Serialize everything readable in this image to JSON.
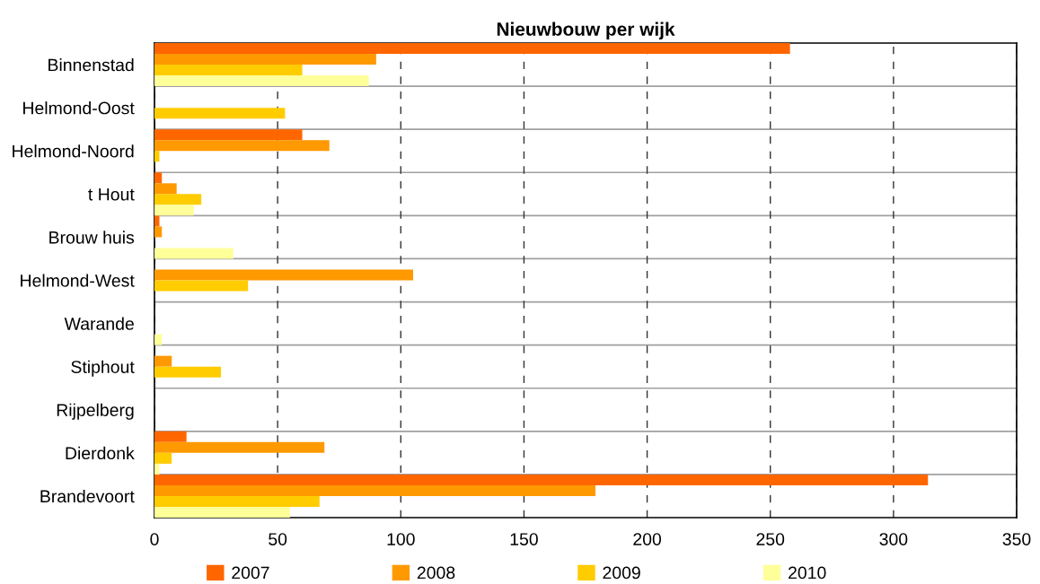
{
  "chart_data": {
    "type": "bar",
    "orientation": "horizontal",
    "title": "Nieuwbouw per wijk",
    "categories": [
      "Binnenstad",
      "Helmond-Oost",
      "Helmond-Noord",
      "t Hout",
      "Brouw huis",
      "Helmond-West",
      "Warande",
      "Stiphout",
      "Rijpelberg",
      "Dierdonk",
      "Brandevoort"
    ],
    "series": [
      {
        "name": "2007",
        "color": "#ff6600",
        "values": [
          258,
          0,
          60,
          3,
          2,
          0,
          0,
          0,
          0,
          13,
          314
        ]
      },
      {
        "name": "2008",
        "color": "#ff9900",
        "values": [
          90,
          0,
          71,
          9,
          3,
          105,
          0,
          7,
          0,
          69,
          179
        ]
      },
      {
        "name": "2009",
        "color": "#ffcc00",
        "values": [
          60,
          53,
          2,
          19,
          0,
          38,
          0,
          27,
          0,
          7,
          67
        ]
      },
      {
        "name": "2010",
        "color": "#ffff99",
        "values": [
          87,
          0,
          0,
          16,
          32,
          0,
          3,
          0,
          0,
          2,
          55
        ]
      }
    ],
    "xlim": [
      0,
      350
    ],
    "xticks": [
      0,
      50,
      100,
      150,
      200,
      250,
      300,
      350
    ],
    "grid": true,
    "legend": "bottom"
  }
}
